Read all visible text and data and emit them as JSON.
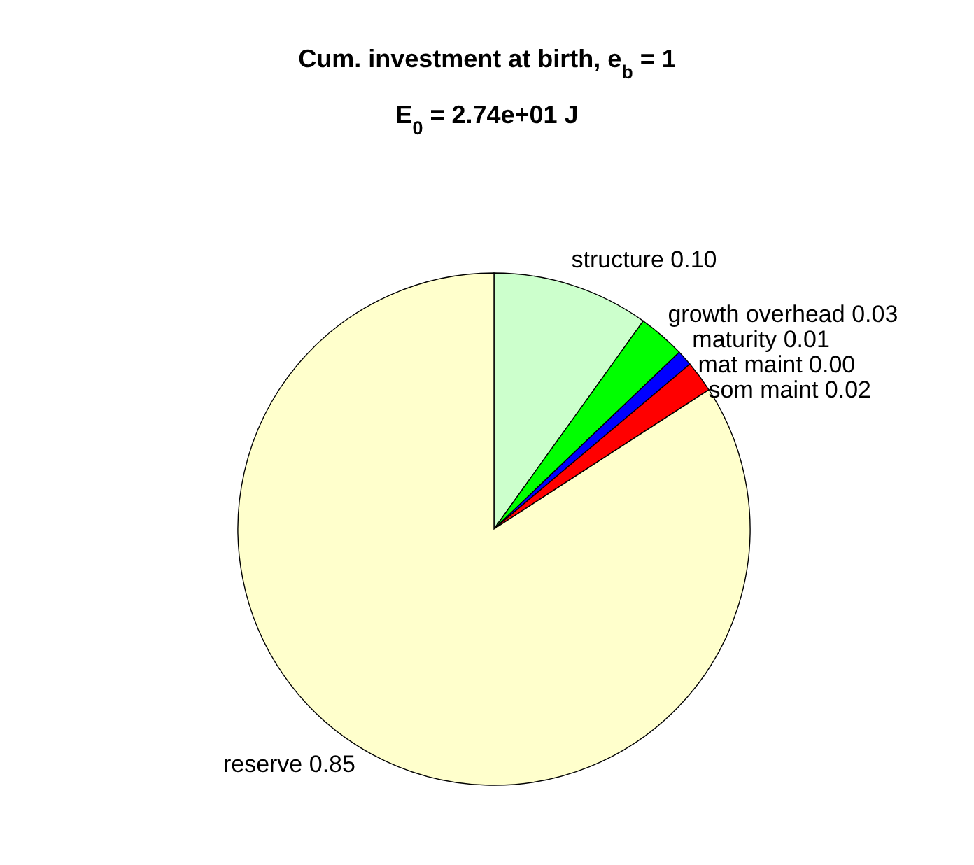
{
  "chart_data": {
    "type": "pie",
    "title": "Cum. investment at birth, e$_{b}$ = 1",
    "subtitle": "E$_{0}$ = 2.74e+01 J",
    "categories": [
      "structure",
      "growth overhead",
      "maturity",
      "mat maint",
      "som maint",
      "reserve"
    ],
    "values": [
      0.1,
      0.03,
      0.01,
      0.0,
      0.02,
      0.85
    ],
    "value_labels": [
      "0.10",
      "0.03",
      "0.01",
      "0.00",
      "0.02",
      "0.85"
    ],
    "colors": [
      "#ccffcc",
      "#00ff00",
      "#0000ff",
      "#ff00ff",
      "#ff0000",
      "#ffffcc"
    ],
    "legend": false
  }
}
